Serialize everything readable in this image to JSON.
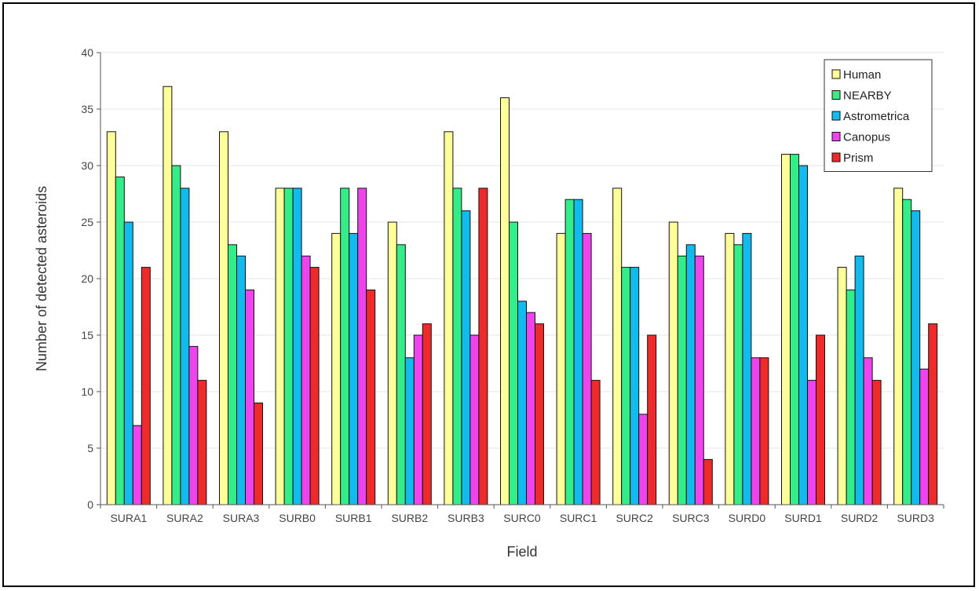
{
  "chart_data": {
    "type": "bar",
    "title": "",
    "xlabel": "Field",
    "ylabel": "Number of detected asteroids",
    "ylim": [
      0,
      40
    ],
    "yticks": [
      0,
      5,
      10,
      15,
      20,
      25,
      30,
      35,
      40
    ],
    "grid": true,
    "legend_position": "top-right",
    "categories": [
      "SURA1",
      "SURA2",
      "SURA3",
      "SURB0",
      "SURB1",
      "SURB2",
      "SURB3",
      "SURC0",
      "SURC1",
      "SURC2",
      "SURC3",
      "SURD0",
      "SURD1",
      "SURD2",
      "SURD3"
    ],
    "series": [
      {
        "name": "Human",
        "color": "#ffff99",
        "values": [
          33,
          37,
          33,
          28,
          24,
          25,
          33,
          36,
          24,
          28,
          25,
          24,
          31,
          21,
          28
        ]
      },
      {
        "name": "NEARBY",
        "color": "#33ee88",
        "values": [
          29,
          30,
          23,
          28,
          28,
          23,
          28,
          25,
          27,
          21,
          22,
          23,
          31,
          19,
          27
        ]
      },
      {
        "name": "Astrometrica",
        "color": "#11bbee",
        "values": [
          25,
          28,
          22,
          28,
          24,
          13,
          26,
          18,
          27,
          21,
          23,
          24,
          30,
          22,
          26
        ]
      },
      {
        "name": "Canopus",
        "color": "#ee44ee",
        "values": [
          7,
          14,
          19,
          22,
          28,
          15,
          15,
          17,
          24,
          8,
          22,
          13,
          11,
          13,
          12
        ]
      },
      {
        "name": "Prism",
        "color": "#ee2a2a",
        "values": [
          21,
          11,
          9,
          21,
          19,
          16,
          28,
          16,
          11,
          15,
          4,
          13,
          15,
          11,
          16
        ]
      }
    ]
  }
}
